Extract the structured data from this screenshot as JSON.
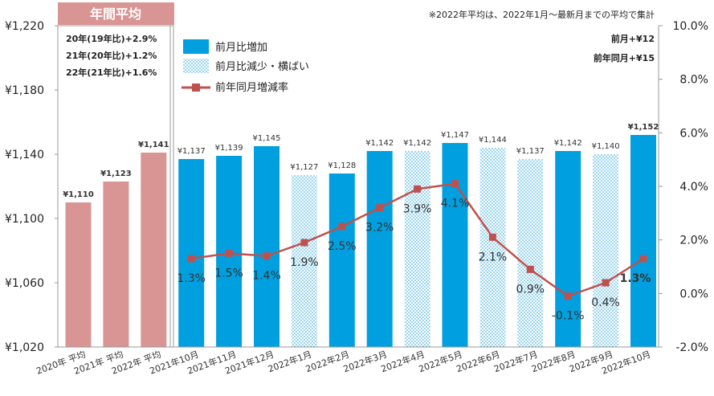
{
  "header": {
    "badge": "年間平均",
    "note": "※2022年平均は、2022年1月～最新月までの平均で集計",
    "mom_change": "前月+¥12",
    "yoy_change": "前年同月+¥15"
  },
  "annual_notes": [
    "20年(19年比)+2.9%",
    "21年(20年比)+1.2%",
    "22年(21年比)+1.6%"
  ],
  "legend": {
    "increase": "前月比増加",
    "decrease": "前月比減少・横ばい",
    "rate": "前年同月増減率"
  },
  "colors": {
    "annual": "#d99594",
    "increase": "#00a0e0",
    "decrease_dots": "#4fb8e6",
    "line": "#c0504d",
    "negative_label": "#e26b5f"
  },
  "chart_data": {
    "type": "bar",
    "categories": [
      "2020年 平均",
      "2021年 平均",
      "2022年 平均",
      "2021年10月",
      "2021年11月",
      "2021年12月",
      "2022年1月",
      "2022年2月",
      "2022年3月",
      "2022年4月",
      "2022年5月",
      "2022年6月",
      "2022年7月",
      "2022年8月",
      "2022年9月",
      "2022年10月"
    ],
    "values": [
      1110,
      1123,
      1141,
      1137,
      1139,
      1145,
      1127,
      1128,
      1142,
      1142,
      1147,
      1144,
      1137,
      1142,
      1140,
      1152
    ],
    "value_labels": [
      "¥1,110",
      "¥1,123",
      "¥1,141",
      "¥1,137",
      "¥1,139",
      "¥1,145",
      "¥1,127",
      "¥1,128",
      "¥1,142",
      "¥1,142",
      "¥1,147",
      "¥1,144",
      "¥1,137",
      "¥1,142",
      "¥1,140",
      "¥1,152"
    ],
    "bar_kinds": [
      "annual",
      "annual",
      "annual",
      "increase",
      "increase",
      "increase",
      "decrease",
      "increase",
      "increase",
      "decrease",
      "increase",
      "decrease",
      "decrease",
      "increase",
      "decrease",
      "increase"
    ],
    "line_series": {
      "name": "前年同月増減率",
      "values": [
        null,
        null,
        null,
        1.3,
        1.5,
        1.4,
        1.9,
        2.5,
        3.2,
        3.9,
        4.1,
        2.1,
        0.9,
        -0.1,
        0.4,
        1.3
      ],
      "labels": [
        "",
        "",
        "",
        "1.3%",
        "1.5%",
        "1.4%",
        "1.9%",
        "2.5%",
        "3.2%",
        "3.9%",
        "4.1%",
        "2.1%",
        "0.9%",
        "-0.1%",
        "0.4%",
        "1.3%"
      ]
    },
    "ylim": [
      1020,
      1220
    ],
    "yticks": [
      1020,
      1060,
      1100,
      1140,
      1180,
      1220
    ],
    "ytick_labels": [
      "¥1,020",
      "¥1,060",
      "¥1,100",
      "¥1,140",
      "¥1,180",
      "¥1,220"
    ],
    "y2lim": [
      -2,
      10
    ],
    "y2ticks": [
      -2,
      0,
      2,
      4,
      6,
      8,
      10
    ],
    "y2tick_labels": [
      "-2.0%",
      "0.0%",
      "2.0%",
      "4.0%",
      "6.0%",
      "8.0%",
      "10.0%"
    ],
    "grid": false,
    "legend_position": "top-left"
  }
}
